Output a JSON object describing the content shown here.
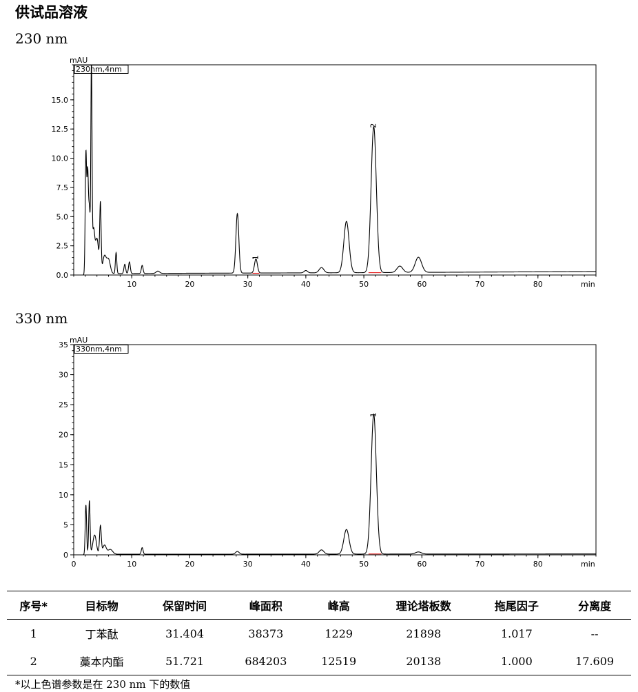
{
  "page_title": "供试品溶液",
  "chart_data": [
    {
      "type": "line",
      "wavelength_label": "230 nm",
      "detector_label": "230nm,4nm",
      "ylabel": "mAU",
      "xlabel": "min",
      "xlim": [
        0,
        90
      ],
      "ylim": [
        0,
        18
      ],
      "yticks": [
        0.0,
        2.5,
        5.0,
        7.5,
        10.0,
        12.5,
        15.0
      ],
      "ytick_labels": [
        "0.0",
        "2.5",
        "5.0",
        "7.5",
        "10.0",
        "12.5",
        "15.0"
      ],
      "xticks": [
        10,
        20,
        30,
        40,
        50,
        60,
        70,
        80
      ],
      "xtick_labels": [
        "10",
        "20",
        "30",
        "40",
        "50",
        "60",
        "70",
        "80"
      ],
      "baseline": [
        [
          0,
          0.1
        ],
        [
          20,
          0.15
        ],
        [
          50,
          0.2
        ],
        [
          90,
          0.3
        ]
      ],
      "peaks": [
        {
          "t": 2.1,
          "h": 10.2,
          "w": 0.12
        },
        {
          "t": 2.4,
          "h": 8.0,
          "w": 0.12
        },
        {
          "t": 2.7,
          "h": 5.5,
          "w": 0.15
        },
        {
          "t": 3.05,
          "h": 17.5,
          "w": 0.1
        },
        {
          "t": 3.4,
          "h": 3.5,
          "w": 0.2
        },
        {
          "t": 4.0,
          "h": 3.0,
          "w": 0.3
        },
        {
          "t": 4.6,
          "h": 5.7,
          "w": 0.12
        },
        {
          "t": 5.3,
          "h": 1.5,
          "w": 0.3
        },
        {
          "t": 6.0,
          "h": 1.2,
          "w": 0.3
        },
        {
          "t": 7.3,
          "h": 1.8,
          "w": 0.12
        },
        {
          "t": 8.8,
          "h": 0.8,
          "w": 0.15
        },
        {
          "t": 9.6,
          "h": 1.0,
          "w": 0.15
        },
        {
          "t": 11.8,
          "h": 0.7,
          "w": 0.15
        },
        {
          "t": 14.5,
          "h": 0.2,
          "w": 0.3
        },
        {
          "t": 28.2,
          "h": 5.1,
          "w": 0.25
        },
        {
          "t": 31.4,
          "h": 1.2,
          "w": 0.25
        },
        {
          "t": 40.0,
          "h": 0.2,
          "w": 0.3
        },
        {
          "t": 42.7,
          "h": 0.45,
          "w": 0.4
        },
        {
          "t": 47.0,
          "h": 4.4,
          "w": 0.45
        },
        {
          "t": 51.7,
          "h": 12.5,
          "w": 0.45
        },
        {
          "t": 56.2,
          "h": 0.55,
          "w": 0.5
        },
        {
          "t": 59.4,
          "h": 1.3,
          "w": 0.55
        }
      ],
      "peak_labels": [
        {
          "t": 31.4,
          "y": 1.7,
          "text": "1"
        },
        {
          "t": 51.7,
          "y": 13.0,
          "text": "2"
        }
      ],
      "integration_baselines": [
        [
          [
            30.8,
            0.15
          ],
          [
            32.0,
            0.15
          ]
        ],
        [
          [
            50.8,
            0.2
          ],
          [
            53.0,
            0.2
          ]
        ]
      ]
    },
    {
      "type": "line",
      "wavelength_label": "330 nm",
      "detector_label": "330nm,4nm",
      "ylabel": "mAU",
      "xlabel": "min",
      "xlim": [
        0,
        90
      ],
      "ylim": [
        0,
        35
      ],
      "yticks": [
        0,
        5,
        10,
        15,
        20,
        25,
        30,
        35
      ],
      "ytick_labels": [
        "0",
        "5",
        "10",
        "15",
        "20",
        "25",
        "30",
        "35"
      ],
      "xticks": [
        0,
        10,
        20,
        30,
        40,
        50,
        60,
        70,
        80
      ],
      "xtick_labels": [
        "0",
        "10",
        "20",
        "30",
        "40",
        "50",
        "60",
        "70",
        "80"
      ],
      "baseline": [
        [
          0,
          0.1
        ],
        [
          90,
          0.15
        ]
      ],
      "peaks": [
        {
          "t": 2.1,
          "h": 8.2,
          "w": 0.12
        },
        {
          "t": 2.7,
          "h": 8.9,
          "w": 0.12
        },
        {
          "t": 3.6,
          "h": 3.2,
          "w": 0.3
        },
        {
          "t": 4.6,
          "h": 4.7,
          "w": 0.15
        },
        {
          "t": 5.3,
          "h": 1.5,
          "w": 0.3
        },
        {
          "t": 6.3,
          "h": 0.8,
          "w": 0.4
        },
        {
          "t": 11.8,
          "h": 1.1,
          "w": 0.15
        },
        {
          "t": 28.2,
          "h": 0.45,
          "w": 0.3
        },
        {
          "t": 42.7,
          "h": 0.7,
          "w": 0.4
        },
        {
          "t": 47.0,
          "h": 4.1,
          "w": 0.45
        },
        {
          "t": 51.7,
          "h": 23.3,
          "w": 0.45
        },
        {
          "t": 59.4,
          "h": 0.35,
          "w": 0.5
        }
      ],
      "peak_labels": [
        {
          "t": 51.7,
          "y": 23.7,
          "text": "1"
        }
      ],
      "integration_baselines": [
        [
          [
            50.8,
            0.15
          ],
          [
            53.0,
            0.15
          ]
        ]
      ]
    }
  ],
  "table": {
    "headers": [
      "序号*",
      "目标物",
      "保留时间",
      "峰面积",
      "峰高",
      "理论塔板数",
      "拖尾因子",
      "分离度"
    ],
    "rows": [
      [
        "1",
        "丁苯酞",
        "31.404",
        "38373",
        "1229",
        "21898",
        "1.017",
        "--"
      ],
      [
        "2",
        "藁本内酯",
        "51.721",
        "684203",
        "12519",
        "20138",
        "1.000",
        "17.609"
      ]
    ]
  },
  "footnote": "*以上色谱参数是在 230 nm 下的数值"
}
